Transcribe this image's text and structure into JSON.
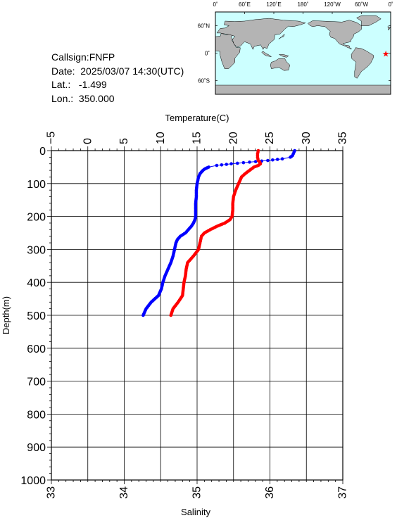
{
  "info": {
    "callsign": "Callsign:FNFP",
    "date": "Date:  2025/03/07 14:30(UTC)",
    "lat": "Lat.:   -1.499",
    "lon": "Lon.:  350.000"
  },
  "map": {
    "lon_labels": [
      "0˚",
      "60˚E",
      "120˚E",
      "180˚",
      "120˚W",
      "60˚W",
      "0˚"
    ],
    "lat_labels": [
      "60˚N",
      "0˚",
      "60˚S"
    ],
    "marker": {
      "lon": 350.0,
      "lat": -1.499,
      "symbol": "★",
      "color": "#ff0000"
    },
    "ocean_color": "#ccffff",
    "land_color": "#b4b4b4"
  },
  "chart_data": {
    "type": "line",
    "title": "",
    "ylabel": "Depth(m)",
    "ylim": [
      1000,
      0
    ],
    "yticks": [
      "0",
      "100",
      "200",
      "300",
      "400",
      "500",
      "600",
      "700",
      "800",
      "900",
      "1000"
    ],
    "top_axis": {
      "label": "Temperature(C)",
      "lim": [
        -5,
        35
      ],
      "ticks": [
        "−5",
        "0",
        "5",
        "10",
        "15",
        "20",
        "25",
        "30",
        "35"
      ]
    },
    "bottom_axis": {
      "label": "Salinity",
      "lim": [
        33,
        37
      ],
      "ticks": [
        "33",
        "34",
        "35",
        "36",
        "37"
      ]
    },
    "grid": true,
    "series": [
      {
        "axis": "temperature",
        "color": "#0000ff",
        "depth": [
          0,
          5,
          10,
          15,
          20,
          25,
          30,
          35,
          40,
          45,
          50,
          55,
          60,
          65,
          70,
          75,
          80,
          90,
          100,
          120,
          140,
          160,
          180,
          200,
          210,
          220,
          230,
          240,
          250,
          260,
          270,
          280,
          300,
          320,
          340,
          360,
          380,
          400,
          420,
          440,
          460,
          480,
          500
        ],
        "values": [
          28.4,
          28.3,
          28.2,
          28.1,
          27.8,
          26.7,
          24.7,
          22.2,
          19.7,
          17.7,
          16.6,
          16.1,
          15.8,
          15.6,
          15.4,
          15.3,
          15.2,
          15.1,
          15.0,
          14.9,
          14.9,
          14.8,
          14.8,
          14.8,
          14.7,
          14.5,
          14.2,
          13.8,
          13.4,
          12.7,
          12.3,
          12.1,
          11.9,
          11.7,
          11.4,
          11.0,
          10.6,
          10.3,
          10.1,
          9.7,
          8.7,
          8.0,
          7.6
        ]
      },
      {
        "axis": "salinity",
        "color": "#ff0000",
        "depth": [
          0,
          10,
          20,
          30,
          35,
          40,
          45,
          50,
          60,
          70,
          80,
          90,
          100,
          120,
          140,
          160,
          180,
          200,
          210,
          220,
          230,
          240,
          250,
          260,
          270,
          280,
          300,
          320,
          340,
          360,
          380,
          400,
          420,
          440,
          460,
          480,
          500
        ],
        "values": [
          35.84,
          35.83,
          35.83,
          35.84,
          35.86,
          35.87,
          35.84,
          35.78,
          35.72,
          35.66,
          35.61,
          35.59,
          35.57,
          35.53,
          35.5,
          35.49,
          35.49,
          35.48,
          35.45,
          35.38,
          35.27,
          35.18,
          35.1,
          35.06,
          35.05,
          35.04,
          35.02,
          34.95,
          34.87,
          34.85,
          34.84,
          34.82,
          34.81,
          34.8,
          34.74,
          34.67,
          34.64
        ]
      }
    ]
  }
}
